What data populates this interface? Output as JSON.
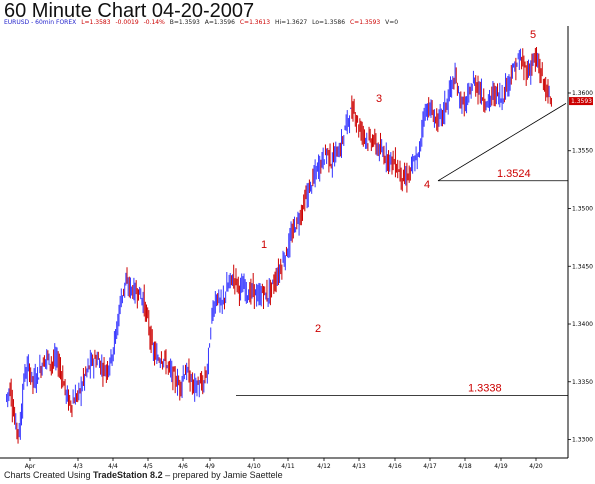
{
  "title": "60 Minute Chart 04-20-2007",
  "infobar": {
    "symbol": "EURUSD - 60min FOREX",
    "last": "L=1.3583",
    "change": "-0.0019",
    "pct": "-0.14%",
    "bid": "B=1.3593",
    "ask": "A=1.3596",
    "close": "C=1.3613",
    "high": "Hi=1.3627",
    "low": "Lo=1.3586",
    "c2": "C=1.3593",
    "vol": "V=0"
  },
  "credit": {
    "prefix": "Charts Created Using ",
    "brand": "TradeStation 8.2",
    "suffix": " – prepared by Jamie Saettele"
  },
  "colors": {
    "up": "#3333ff",
    "down": "#cc0000",
    "label": "#cc0000",
    "line": "#000000"
  },
  "chart_data": {
    "type": "candlestick",
    "instrument": "EURUSD",
    "interval": "60min",
    "x_ticks": [
      "Apr",
      "4/3",
      "4/4",
      "4/5",
      "4/6",
      "4/9",
      "4/10",
      "4/11",
      "4/12",
      "4/13",
      "4/16",
      "4/17",
      "4/18",
      "4/19",
      "4/20"
    ],
    "y_ticks": [
      "1.3600",
      "1.3550",
      "1.3500",
      "1.3450",
      "1.3400",
      "1.3350",
      "1.3300"
    ],
    "ylim": [
      1.3284,
      1.3658
    ],
    "current_price_label": "1.3593",
    "price_path": [
      [
        0,
        1.3335
      ],
      [
        1,
        1.3345
      ],
      [
        2,
        1.3315
      ],
      [
        3,
        1.3305
      ],
      [
        4,
        1.3355
      ],
      [
        5,
        1.3362
      ],
      [
        6,
        1.335
      ],
      [
        7,
        1.3356
      ],
      [
        8,
        1.3366
      ],
      [
        9,
        1.3372
      ],
      [
        10,
        1.3366
      ],
      [
        11,
        1.337
      ],
      [
        12,
        1.336
      ],
      [
        13,
        1.3342
      ],
      [
        14,
        1.333
      ],
      [
        15,
        1.3335
      ],
      [
        16,
        1.334
      ],
      [
        17,
        1.3352
      ],
      [
        18,
        1.3362
      ],
      [
        19,
        1.3368
      ],
      [
        20,
        1.337
      ],
      [
        21,
        1.3362
      ],
      [
        22,
        1.336
      ],
      [
        23,
        1.3372
      ],
      [
        24,
        1.339
      ],
      [
        25,
        1.342
      ],
      [
        26,
        1.3435
      ],
      [
        27,
        1.3432
      ],
      [
        28,
        1.3428
      ],
      [
        29,
        1.3428
      ],
      [
        30,
        1.342
      ],
      [
        31,
        1.3402
      ],
      [
        32,
        1.3378
      ],
      [
        33,
        1.337
      ],
      [
        34,
        1.3372
      ],
      [
        35,
        1.3366
      ],
      [
        36,
        1.3358
      ],
      [
        37,
        1.3352
      ],
      [
        38,
        1.3346
      ],
      [
        39,
        1.336
      ],
      [
        40,
        1.3355
      ],
      [
        41,
        1.3345
      ],
      [
        42,
        1.3348
      ],
      [
        43,
        1.3346
      ],
      [
        44,
        1.3362
      ],
      [
        45,
        1.341
      ],
      [
        46,
        1.3425
      ],
      [
        47,
        1.3415
      ],
      [
        48,
        1.3428
      ],
      [
        49,
        1.3438
      ],
      [
        50,
        1.344
      ],
      [
        51,
        1.343
      ],
      [
        52,
        1.3432
      ],
      [
        53,
        1.3425
      ],
      [
        54,
        1.343
      ],
      [
        55,
        1.3422
      ],
      [
        56,
        1.3428
      ],
      [
        57,
        1.3424
      ],
      [
        58,
        1.3432
      ],
      [
        59,
        1.344
      ],
      [
        60,
        1.345
      ],
      [
        61,
        1.346
      ],
      [
        62,
        1.3472
      ],
      [
        63,
        1.3485
      ],
      [
        64,
        1.3492
      ],
      [
        65,
        1.3505
      ],
      [
        66,
        1.3515
      ],
      [
        67,
        1.3525
      ],
      [
        68,
        1.3535
      ],
      [
        69,
        1.3542
      ],
      [
        70,
        1.355
      ],
      [
        71,
        1.354
      ],
      [
        72,
        1.3548
      ],
      [
        73,
        1.3552
      ],
      [
        74,
        1.357
      ],
      [
        75,
        1.3582
      ],
      [
        76,
        1.3585
      ],
      [
        77,
        1.357
      ],
      [
        78,
        1.3565
      ],
      [
        79,
        1.3558
      ],
      [
        80,
        1.356
      ],
      [
        81,
        1.3552
      ],
      [
        82,
        1.3548
      ],
      [
        83,
        1.3545
      ],
      [
        84,
        1.3542
      ],
      [
        85,
        1.3538
      ],
      [
        86,
        1.353
      ],
      [
        87,
        1.3525
      ],
      [
        88,
        1.353
      ],
      [
        89,
        1.354
      ],
      [
        90,
        1.3545
      ],
      [
        91,
        1.358
      ],
      [
        92,
        1.3588
      ],
      [
        93,
        1.3582
      ],
      [
        94,
        1.3575
      ],
      [
        95,
        1.358
      ],
      [
        96,
        1.359
      ],
      [
        97,
        1.3605
      ],
      [
        98,
        1.3612
      ],
      [
        99,
        1.3595
      ],
      [
        100,
        1.3588
      ],
      [
        101,
        1.3598
      ],
      [
        102,
        1.361
      ],
      [
        103,
        1.3605
      ],
      [
        104,
        1.3596
      ],
      [
        105,
        1.359
      ],
      [
        106,
        1.3598
      ],
      [
        107,
        1.36
      ],
      [
        108,
        1.3595
      ],
      [
        109,
        1.3605
      ],
      [
        110,
        1.3615
      ],
      [
        111,
        1.3622
      ],
      [
        112,
        1.363
      ],
      [
        113,
        1.3622
      ],
      [
        114,
        1.3618
      ],
      [
        115,
        1.363
      ],
      [
        116,
        1.3625
      ],
      [
        117,
        1.3612
      ],
      [
        118,
        1.36
      ],
      [
        119,
        1.3593
      ]
    ],
    "horizontal_levels": [
      {
        "price": 1.3524,
        "label": "1.3524"
      },
      {
        "price": 1.3338,
        "label": "1.3338"
      }
    ],
    "trendline": {
      "from": [
        4.17,
        1.3524
      ],
      "to": [
        4.2,
        1.3591
      ]
    },
    "wave_labels": [
      "1",
      "2",
      "3",
      "4",
      "5"
    ]
  }
}
